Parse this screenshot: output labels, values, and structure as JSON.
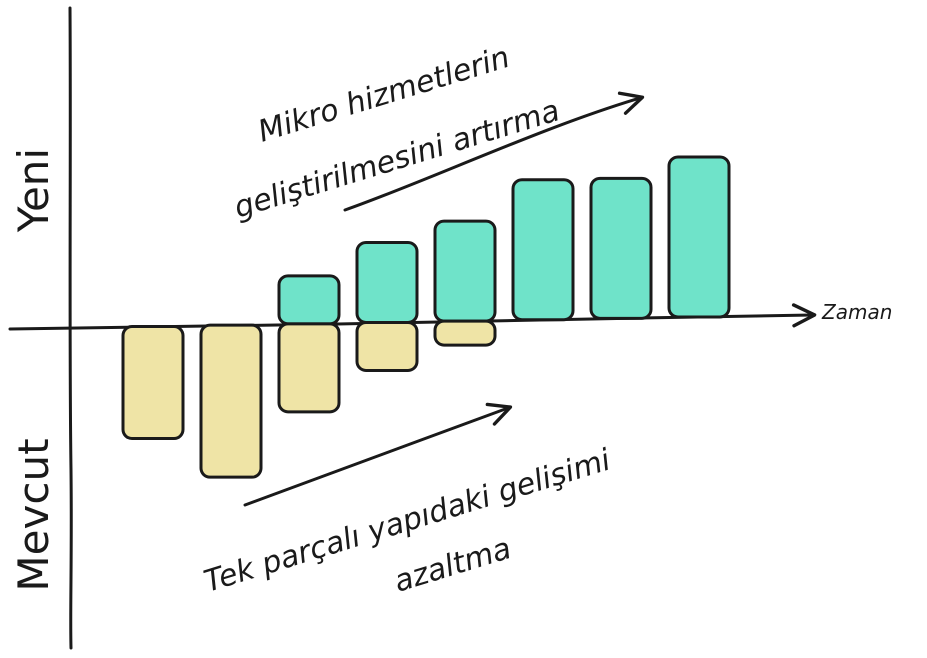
{
  "chart_data": {
    "type": "bar",
    "ylabel_positive": "Yeni",
    "ylabel_negative": "Mevcut",
    "xlabel": "Zaman",
    "series": [
      {
        "key": "new",
        "color": "#6fe3c9",
        "values": [
          0,
          0,
          1.2,
          2.0,
          2.5,
          3.5,
          3.5,
          4.0
        ]
      },
      {
        "key": "current",
        "color": "#efe4a6",
        "values": [
          -2.8,
          -3.8,
          -2.2,
          -1.2,
          -0.6,
          0,
          0,
          0
        ]
      }
    ],
    "ylim": [
      -4.3,
      4.6
    ],
    "grid": false,
    "annotations": [
      {
        "key": "new_trend",
        "lines": [
          "Mikro hizmetlerin",
          "geliştirilmesini artırma"
        ]
      },
      {
        "key": "current_trend",
        "lines": [
          "Tek parçalı yapıdaki gelişimi",
          "azaltma"
        ]
      }
    ]
  }
}
